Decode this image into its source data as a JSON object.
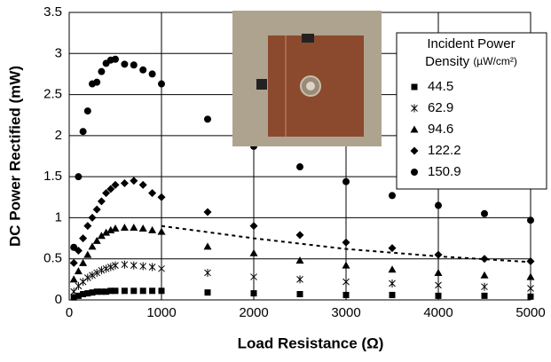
{
  "chart_data": {
    "type": "scatter",
    "xlabel": "Load Resistance (Ω)",
    "ylabel": "DC Power Rectified (mW)",
    "xlim": [
      0,
      5000
    ],
    "xticks": [
      0,
      1000,
      2000,
      3000,
      4000,
      5000
    ],
    "ylim": [
      0,
      3.5
    ],
    "yticks": [
      0,
      0.5,
      1,
      1.5,
      2,
      2.5,
      3,
      3.5
    ],
    "grid": true,
    "legend_title": [
      "Incident Power",
      "Density",
      "(µW/cm²)"
    ],
    "legend": "upper right",
    "x": [
      50,
      100,
      150,
      200,
      250,
      300,
      350,
      400,
      450,
      500,
      600,
      700,
      800,
      900,
      1000,
      1500,
      2000,
      2500,
      3000,
      3500,
      4000,
      4500,
      5000
    ],
    "series": [
      {
        "name": "44.5",
        "color": "#000000",
        "marker": "square",
        "values": [
          0.03,
          0.05,
          0.07,
          0.08,
          0.09,
          0.1,
          0.1,
          0.1,
          0.11,
          0.11,
          0.11,
          0.11,
          0.11,
          0.11,
          0.11,
          0.09,
          0.08,
          0.07,
          0.06,
          0.06,
          0.05,
          0.05,
          0.04
        ]
      },
      {
        "name": "62.9",
        "color": "#000000",
        "marker": "x",
        "values": [
          0.1,
          0.17,
          0.22,
          0.27,
          0.3,
          0.33,
          0.36,
          0.38,
          0.4,
          0.42,
          0.43,
          0.42,
          0.41,
          0.4,
          0.38,
          0.33,
          0.28,
          0.25,
          0.22,
          0.2,
          0.18,
          0.16,
          0.14
        ]
      },
      {
        "name": "94.6",
        "color": "#000000",
        "marker": "triangle",
        "values": [
          0.25,
          0.35,
          0.45,
          0.55,
          0.65,
          0.72,
          0.78,
          0.82,
          0.85,
          0.87,
          0.88,
          0.88,
          0.87,
          0.85,
          0.83,
          0.65,
          0.57,
          0.48,
          0.42,
          0.37,
          0.33,
          0.3,
          0.28
        ]
      },
      {
        "name": "122.2",
        "color": "#000000",
        "marker": "diamond",
        "values": [
          0.45,
          0.6,
          0.75,
          0.9,
          1.0,
          1.1,
          1.2,
          1.3,
          1.35,
          1.4,
          1.42,
          1.45,
          1.4,
          1.3,
          1.25,
          1.07,
          0.9,
          0.79,
          0.7,
          0.63,
          0.55,
          0.5,
          0.47
        ]
      },
      {
        "name": "150.9",
        "color": "#000000",
        "marker": "circle",
        "values": [
          0.64,
          1.5,
          2.05,
          2.3,
          2.63,
          2.65,
          2.78,
          2.88,
          2.92,
          2.93,
          2.87,
          2.86,
          2.8,
          2.75,
          2.63,
          2.2,
          1.87,
          1.62,
          1.44,
          1.27,
          1.15,
          1.05,
          0.97
        ]
      }
    ],
    "trend_line": {
      "x": [
        1000,
        2000,
        3000,
        4000,
        5000
      ],
      "values": [
        0.9,
        0.75,
        0.62,
        0.53,
        0.46
      ]
    }
  }
}
